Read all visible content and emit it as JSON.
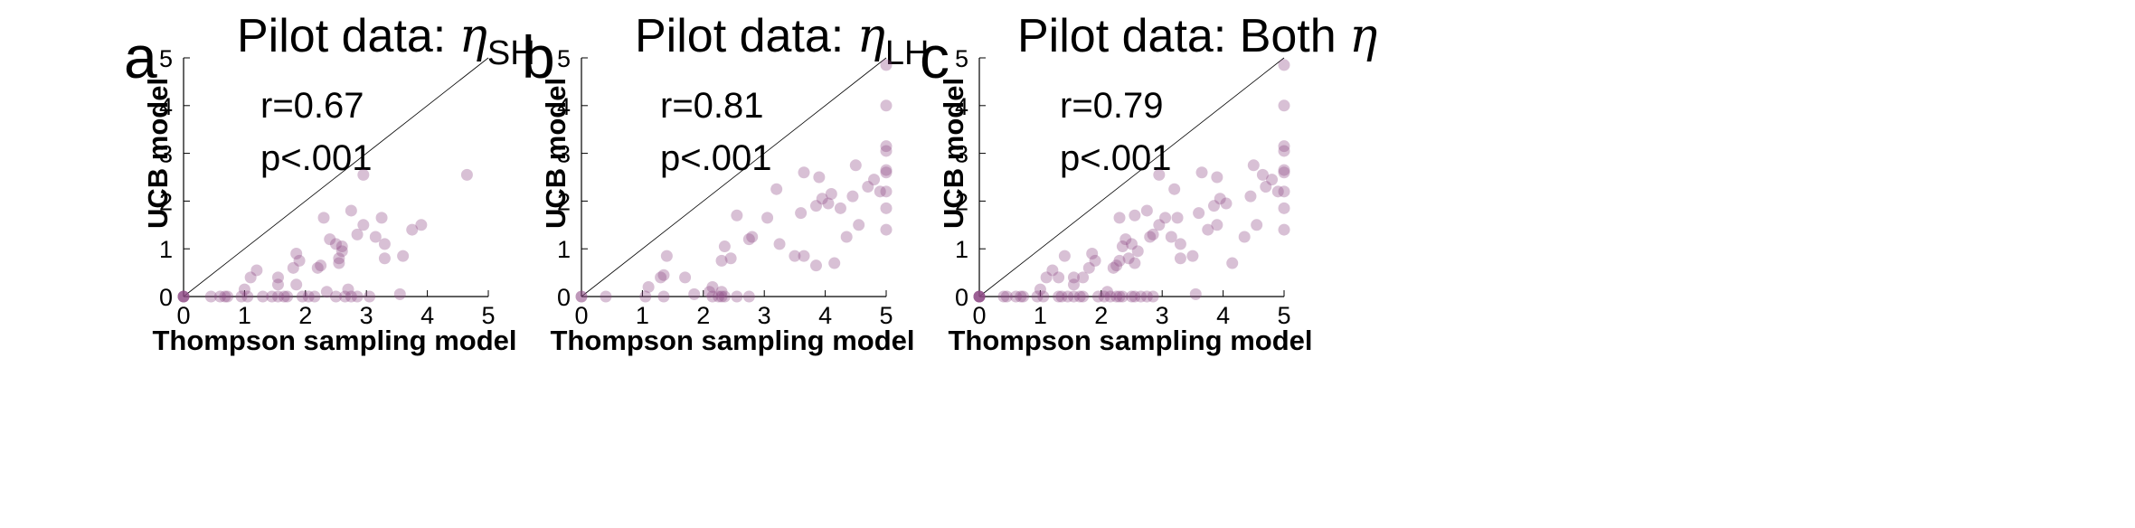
{
  "colors": {
    "point": "#8e4a86",
    "axis": "#000000"
  },
  "chart_data": [
    {
      "type": "scatter",
      "panel_label": "a",
      "title_prefix": "Pilot data: ",
      "title_symbol": "η",
      "title_subscript": "SH",
      "xlabel": "Thompson sampling model",
      "ylabel": "UCB model",
      "xlim": [
        0,
        5
      ],
      "ylim": [
        0,
        5
      ],
      "xticks": [
        "0",
        "1",
        "2",
        "3",
        "4",
        "5"
      ],
      "yticks": [
        "0",
        "1",
        "2",
        "3",
        "4",
        "5"
      ],
      "identity_line": true,
      "r_text": "r=0.67",
      "p_text": "p<.001",
      "points": [
        [
          0,
          0
        ],
        [
          0,
          0
        ],
        [
          0,
          0
        ],
        [
          0,
          0
        ],
        [
          0.45,
          0
        ],
        [
          0.6,
          0
        ],
        [
          0.68,
          0
        ],
        [
          0.72,
          0
        ],
        [
          0.95,
          0
        ],
        [
          1.05,
          0
        ],
        [
          1.3,
          0
        ],
        [
          1.45,
          0
        ],
        [
          1.55,
          0
        ],
        [
          1.65,
          0
        ],
        [
          1.7,
          0
        ],
        [
          1.95,
          0
        ],
        [
          2.05,
          0
        ],
        [
          2.15,
          0
        ],
        [
          2.5,
          0
        ],
        [
          2.65,
          0
        ],
        [
          2.75,
          0
        ],
        [
          2.85,
          0
        ],
        [
          1,
          0.15
        ],
        [
          1.1,
          0.4
        ],
        [
          1.2,
          0.55
        ],
        [
          1.55,
          0.25
        ],
        [
          1.55,
          0.4
        ],
        [
          1.8,
          0.6
        ],
        [
          1.85,
          0.25
        ],
        [
          1.85,
          0.9
        ],
        [
          1.9,
          0.75
        ],
        [
          2.2,
          0.6
        ],
        [
          2.25,
          0.65
        ],
        [
          2.3,
          1.65
        ],
        [
          2.35,
          0.1
        ],
        [
          2.4,
          1.2
        ],
        [
          2.5,
          1.1
        ],
        [
          2.55,
          0.7
        ],
        [
          2.55,
          0.8
        ],
        [
          2.6,
          0.95
        ],
        [
          2.6,
          1.05
        ],
        [
          2.7,
          0.15
        ],
        [
          2.75,
          1.8
        ],
        [
          2.85,
          1.3
        ],
        [
          2.95,
          1.5
        ],
        [
          2.95,
          2.55
        ],
        [
          3.05,
          0
        ],
        [
          3.15,
          1.25
        ],
        [
          3.25,
          1.65
        ],
        [
          3.3,
          1.1
        ],
        [
          3.3,
          0.8
        ],
        [
          3.55,
          0.05
        ],
        [
          3.6,
          0.85
        ],
        [
          3.75,
          1.4
        ],
        [
          3.9,
          1.5
        ],
        [
          4.65,
          2.55
        ]
      ]
    },
    {
      "type": "scatter",
      "panel_label": "b",
      "title_prefix": "Pilot data: ",
      "title_symbol": "η",
      "title_subscript": "LH",
      "xlabel": "Thompson sampling model",
      "ylabel": "UCB model",
      "xlim": [
        0,
        5
      ],
      "ylim": [
        0,
        5
      ],
      "xticks": [
        "0",
        "1",
        "2",
        "3",
        "4",
        "5"
      ],
      "yticks": [
        "0",
        "1",
        "2",
        "3",
        "4",
        "5"
      ],
      "identity_line": true,
      "r_text": "r=0.81",
      "p_text": "p<.001",
      "points": [
        [
          0,
          0
        ],
        [
          0,
          0
        ],
        [
          0.4,
          0
        ],
        [
          1.05,
          0
        ],
        [
          1.35,
          0
        ],
        [
          2.15,
          0
        ],
        [
          2.25,
          0
        ],
        [
          2.3,
          0
        ],
        [
          2.35,
          0
        ],
        [
          2.55,
          0
        ],
        [
          2.75,
          0
        ],
        [
          1.1,
          0.2
        ],
        [
          1.3,
          0.4
        ],
        [
          1.35,
          0.45
        ],
        [
          1.4,
          0.85
        ],
        [
          1.7,
          0.4
        ],
        [
          1.85,
          0.05
        ],
        [
          2.1,
          0.1
        ],
        [
          2.15,
          0.2
        ],
        [
          2.3,
          0.1
        ],
        [
          2.3,
          0.75
        ],
        [
          2.35,
          1.05
        ],
        [
          2.45,
          0.8
        ],
        [
          2.75,
          1.2
        ],
        [
          2.8,
          1.25
        ],
        [
          2.55,
          1.7
        ],
        [
          3.05,
          1.65
        ],
        [
          3.2,
          2.25
        ],
        [
          3.25,
          1.1
        ],
        [
          3.5,
          0.85
        ],
        [
          3.6,
          1.75
        ],
        [
          3.65,
          2.6
        ],
        [
          3.65,
          0.85
        ],
        [
          3.85,
          1.9
        ],
        [
          3.85,
          0.65
        ],
        [
          3.9,
          2.5
        ],
        [
          3.95,
          2.05
        ],
        [
          4.05,
          1.95
        ],
        [
          4.1,
          2.15
        ],
        [
          4.15,
          0.7
        ],
        [
          4.25,
          1.85
        ],
        [
          4.35,
          1.25
        ],
        [
          4.45,
          2.1
        ],
        [
          4.5,
          2.75
        ],
        [
          4.55,
          1.5
        ],
        [
          4.7,
          2.3
        ],
        [
          4.8,
          2.45
        ],
        [
          4.9,
          2.2
        ],
        [
          5,
          4.85
        ],
        [
          5,
          4
        ],
        [
          5,
          3.15
        ],
        [
          5,
          3.05
        ],
        [
          5,
          2.65
        ],
        [
          5,
          2.6
        ],
        [
          5,
          2.2
        ],
        [
          5,
          1.85
        ],
        [
          5,
          1.4
        ]
      ]
    },
    {
      "type": "scatter",
      "panel_label": "c",
      "title_prefix": "Pilot data: Both ",
      "title_symbol": "η",
      "title_subscript": "",
      "xlabel": "Thompson sampling model",
      "ylabel": "UCB model",
      "xlim": [
        0,
        5
      ],
      "ylim": [
        0,
        5
      ],
      "xticks": [
        "0",
        "1",
        "2",
        "3",
        "4",
        "5"
      ],
      "yticks": [
        "0",
        "1",
        "2",
        "3",
        "4",
        "5"
      ],
      "identity_line": true,
      "r_text": "r=0.79",
      "p_text": "p<.001",
      "points": [
        [
          0,
          0
        ],
        [
          0,
          0
        ],
        [
          0,
          0
        ],
        [
          0,
          0
        ],
        [
          0,
          0
        ],
        [
          0.4,
          0
        ],
        [
          0.45,
          0
        ],
        [
          0.6,
          0
        ],
        [
          0.68,
          0
        ],
        [
          0.72,
          0
        ],
        [
          0.95,
          0
        ],
        [
          1.05,
          0
        ],
        [
          1.3,
          0
        ],
        [
          1.35,
          0
        ],
        [
          1.45,
          0
        ],
        [
          1.55,
          0
        ],
        [
          1.65,
          0
        ],
        [
          1.7,
          0
        ],
        [
          1.95,
          0
        ],
        [
          2.05,
          0
        ],
        [
          2.15,
          0
        ],
        [
          2.25,
          0
        ],
        [
          2.3,
          0
        ],
        [
          2.35,
          0
        ],
        [
          2.5,
          0
        ],
        [
          2.55,
          0
        ],
        [
          2.65,
          0
        ],
        [
          2.75,
          0
        ],
        [
          2.85,
          0
        ],
        [
          1,
          0.15
        ],
        [
          1.1,
          0.4
        ],
        [
          1.2,
          0.55
        ],
        [
          1.3,
          0.4
        ],
        [
          1.4,
          0.85
        ],
        [
          1.55,
          0.25
        ],
        [
          1.55,
          0.4
        ],
        [
          1.7,
          0.4
        ],
        [
          1.8,
          0.6
        ],
        [
          1.85,
          0.9
        ],
        [
          1.9,
          0.75
        ],
        [
          2.1,
          0.1
        ],
        [
          2.2,
          0.6
        ],
        [
          2.25,
          0.65
        ],
        [
          2.3,
          1.65
        ],
        [
          2.3,
          0.75
        ],
        [
          2.35,
          1.05
        ],
        [
          2.4,
          1.2
        ],
        [
          2.45,
          0.8
        ],
        [
          2.5,
          1.1
        ],
        [
          2.55,
          0.7
        ],
        [
          2.55,
          1.7
        ],
        [
          2.6,
          0.95
        ],
        [
          2.75,
          1.8
        ],
        [
          2.8,
          1.25
        ],
        [
          2.85,
          1.3
        ],
        [
          2.95,
          1.5
        ],
        [
          2.95,
          2.55
        ],
        [
          3.05,
          1.65
        ],
        [
          3.15,
          1.25
        ],
        [
          3.2,
          2.25
        ],
        [
          3.25,
          1.65
        ],
        [
          3.3,
          1.1
        ],
        [
          3.3,
          0.8
        ],
        [
          3.5,
          0.85
        ],
        [
          3.55,
          0.05
        ],
        [
          3.6,
          1.75
        ],
        [
          3.65,
          2.6
        ],
        [
          3.75,
          1.4
        ],
        [
          3.85,
          1.9
        ],
        [
          3.9,
          1.5
        ],
        [
          3.9,
          2.5
        ],
        [
          3.95,
          2.05
        ],
        [
          4.05,
          1.95
        ],
        [
          4.15,
          0.7
        ],
        [
          4.35,
          1.25
        ],
        [
          4.45,
          2.1
        ],
        [
          4.5,
          2.75
        ],
        [
          4.55,
          1.5
        ],
        [
          4.65,
          2.55
        ],
        [
          4.7,
          2.3
        ],
        [
          4.8,
          2.45
        ],
        [
          4.9,
          2.2
        ],
        [
          5,
          4.85
        ],
        [
          5,
          4
        ],
        [
          5,
          3.15
        ],
        [
          5,
          3.05
        ],
        [
          5,
          2.65
        ],
        [
          5,
          2.6
        ],
        [
          5,
          2.2
        ],
        [
          5,
          1.85
        ],
        [
          5,
          1.4
        ]
      ]
    }
  ]
}
